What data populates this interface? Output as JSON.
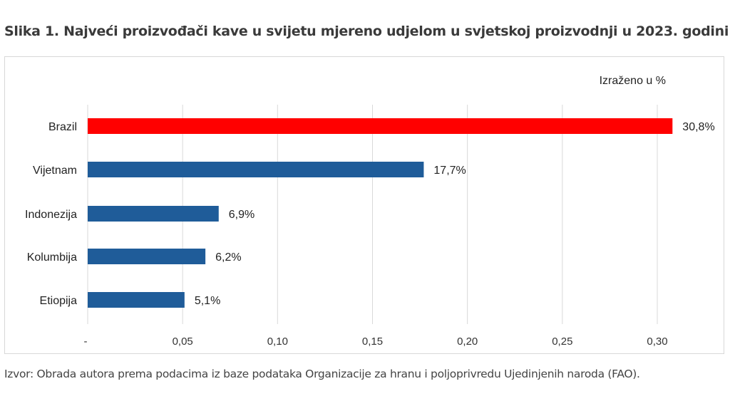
{
  "title": "Slika 1. Najveći proizvođači kave u svijetu mjereno udjelom u svjetskoj proizvodnji u 2023. godini",
  "source": "Izvor: Obrada autora prema podacima iz baze podataka Organizacije za hranu i poljoprivredu Ujedinjenih naroda (FAO).",
  "chart_data": {
    "type": "bar",
    "orientation": "horizontal",
    "unit_note": "Izraženo u %",
    "categories": [
      "Brazil",
      "Vijetnam",
      "Indonezija",
      "Kolumbija",
      "Etiopija"
    ],
    "values": [
      0.308,
      0.177,
      0.069,
      0.062,
      0.051
    ],
    "data_labels": [
      "30,8%",
      "17,7%",
      "6,9%",
      "6,2%",
      "5,1%"
    ],
    "colors": [
      "#ff0000",
      "#1f5c99",
      "#1f5c99",
      "#1f5c99",
      "#1f5c99"
    ],
    "xticks": [
      0,
      0.05,
      0.1,
      0.15,
      0.2,
      0.25,
      0.3
    ],
    "xtick_labels": [
      "-",
      "0,05",
      "0,10",
      "0,15",
      "0,20",
      "0,25",
      "0,30"
    ],
    "xlim": [
      0,
      0.3
    ],
    "grid": true,
    "xlabel": "",
    "ylabel": ""
  }
}
